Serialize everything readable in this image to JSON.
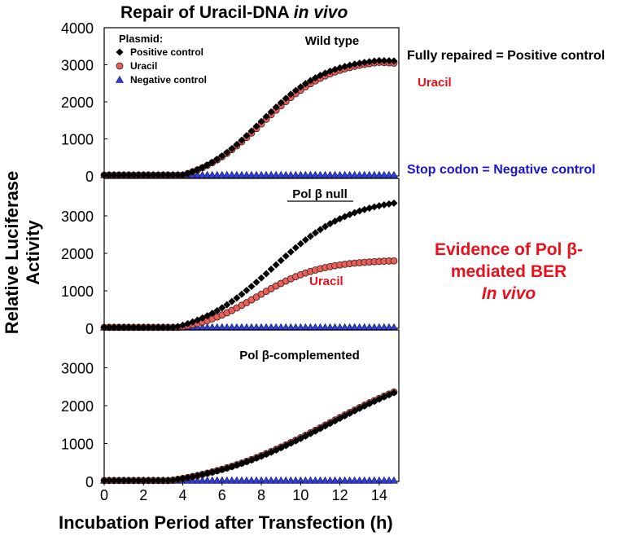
{
  "chart_data": {
    "type": "scatter",
    "title": {
      "main": "Repair of Uracil-DNA ",
      "italic": "in vivo"
    },
    "xlabel": "Incubation Period after Transfection (h)",
    "ylabel": [
      "Relative Luciferase",
      "Activity"
    ],
    "xlim": [
      0,
      15
    ],
    "x_ticks": [
      "0",
      "2",
      "4",
      "6",
      "8",
      "10",
      "12",
      "14"
    ],
    "legend": {
      "title": "Plasmid:",
      "position": "top-left",
      "entries": [
        {
          "label": "Positive control",
          "marker": "diamond",
          "color": "#000000"
        },
        {
          "label": "Uracil",
          "marker": "circle",
          "color": "#e8605a"
        },
        {
          "label": "Negative control",
          "marker": "triangle",
          "color": "#2f3fd0"
        }
      ]
    },
    "panels": [
      {
        "label": "Wild type",
        "ylim": [
          0,
          4000
        ],
        "y_ticks": [
          "0",
          "1000",
          "2000",
          "3000",
          "4000"
        ],
        "series": [
          {
            "marker": "diamond",
            "color": "#000000",
            "model": {
              "top": 3180,
              "mid": 8.0,
              "k": 0.6,
              "start": 4.0,
              "peak_at": 14.0,
              "decline": 60
            }
          },
          {
            "marker": "circle",
            "color": "#e8605a",
            "model": {
              "top": 3150,
              "mid": 8.1,
              "k": 0.58,
              "start": 4.0,
              "peak_at": 14.0,
              "decline": 80
            }
          },
          {
            "marker": "triangle",
            "color": "#2f3fd0",
            "model": {
              "top": 0,
              "mid": 8,
              "k": 1,
              "start": 4,
              "peak_at": 0,
              "decline": 0
            }
          }
        ]
      },
      {
        "label": "Pol β null",
        "ylim": [
          0,
          4000
        ],
        "y_ticks": [
          "0",
          "1000",
          "2000",
          "3000"
        ],
        "series": [
          {
            "marker": "diamond",
            "color": "#000000",
            "model": {
              "top": 3480,
              "mid": 8.6,
              "k": 0.5,
              "start": 3.6,
              "peak_at": 0,
              "decline": 0
            }
          },
          {
            "marker": "circle",
            "color": "#e8605a",
            "model": {
              "top": 1800,
              "mid": 7.8,
              "k": 0.62,
              "start": 3.8,
              "peak_at": 0,
              "decline": 0
            }
          },
          {
            "marker": "triangle",
            "color": "#2f3fd0",
            "model": {
              "top": 0,
              "mid": 8,
              "k": 1,
              "start": 4,
              "peak_at": 0,
              "decline": 0
            }
          }
        ],
        "series_label": "Uracil"
      },
      {
        "label": "Pol β-complemented",
        "ylim": [
          0,
          4000
        ],
        "y_ticks": [
          "0",
          "1000",
          "2000",
          "3000"
        ],
        "series": [
          {
            "marker": "diamond",
            "color": "#000000",
            "model": {
              "top": 3300,
              "mid": 11.5,
              "k": 0.3,
              "start": 3.4,
              "peak_at": 0,
              "decline": 0
            }
          },
          {
            "marker": "circle",
            "color": "#e8605a",
            "model": {
              "top": 3300,
              "mid": 11.4,
              "k": 0.3,
              "start": 3.4,
              "peak_at": 0,
              "decline": 0
            }
          },
          {
            "marker": "triangle",
            "color": "#2f3fd0",
            "model": {
              "top": 0,
              "mid": 8,
              "k": 1,
              "start": 4,
              "peak_at": 0,
              "decline": 0
            }
          }
        ]
      }
    ],
    "point_x_start": 0,
    "point_x_step": 0.25,
    "point_x_end": 14.75,
    "baseline": 25
  },
  "annotations": {
    "fully_repaired": "Fully repaired = Positive control",
    "uracil_right": "Uracil",
    "stop_codon": "Stop codon = Negative control",
    "evidence": [
      "Evidence of Pol β-",
      "mediated BER",
      "In vivo"
    ]
  },
  "colors": {
    "red": "#e8111b",
    "blue": "#1a14d8",
    "uracil_fill": "#e8605a",
    "triangle_fill": "#2f3fd0"
  }
}
